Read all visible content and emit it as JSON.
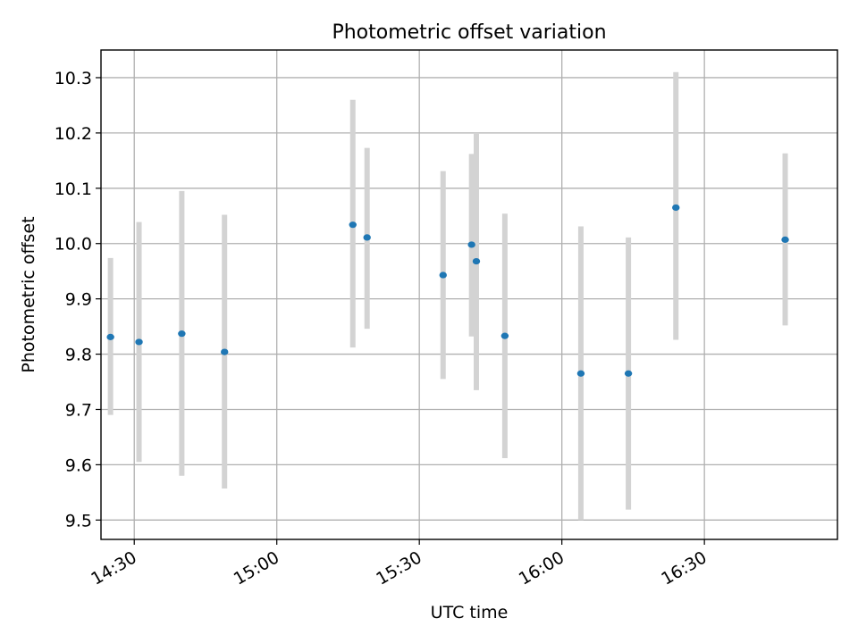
{
  "chart_data": {
    "type": "scatter",
    "title": "Photometric offset variation",
    "xlabel": "UTC time",
    "ylabel": "Photometric offset",
    "grid": true,
    "xlim": [
      "14:23",
      "16:58"
    ],
    "ylim": [
      9.465,
      10.35
    ],
    "x_ticks": [
      "14:30",
      "15:00",
      "15:30",
      "16:00",
      "16:30"
    ],
    "y_ticks": [
      9.5,
      9.6,
      9.7,
      9.8,
      9.9,
      10.0,
      10.1,
      10.2,
      10.3
    ],
    "y_tick_labels": [
      "9.5",
      "9.6",
      "9.7",
      "9.8",
      "9.9",
      "10.0",
      "10.1",
      "10.2",
      "10.3"
    ],
    "colors": {
      "marker": "#1f77b4",
      "errorbar": "#d3d3d3",
      "grid": "#b0b0b0"
    },
    "points": [
      {
        "time": "14:25",
        "value": 9.831,
        "err_low": 9.69,
        "err_high": 9.974
      },
      {
        "time": "14:31",
        "value": 9.822,
        "err_low": 9.605,
        "err_high": 10.039
      },
      {
        "time": "14:40",
        "value": 9.837,
        "err_low": 9.58,
        "err_high": 10.095
      },
      {
        "time": "14:49",
        "value": 9.804,
        "err_low": 9.557,
        "err_high": 10.052
      },
      {
        "time": "15:16",
        "value": 10.034,
        "err_low": 9.812,
        "err_high": 10.26
      },
      {
        "time": "15:19",
        "value": 10.011,
        "err_low": 9.846,
        "err_high": 10.173
      },
      {
        "time": "15:35",
        "value": 9.943,
        "err_low": 9.755,
        "err_high": 10.131
      },
      {
        "time": "15:41",
        "value": 9.998,
        "err_low": 9.832,
        "err_high": 10.162
      },
      {
        "time": "15:42",
        "value": 9.968,
        "err_low": 9.735,
        "err_high": 10.2
      },
      {
        "time": "15:48",
        "value": 9.833,
        "err_low": 9.612,
        "err_high": 10.054
      },
      {
        "time": "16:04",
        "value": 9.765,
        "err_low": 9.5,
        "err_high": 10.031
      },
      {
        "time": "16:14",
        "value": 9.765,
        "err_low": 9.519,
        "err_high": 10.011
      },
      {
        "time": "16:24",
        "value": 10.065,
        "err_low": 9.826,
        "err_high": 10.31
      },
      {
        "time": "16:47",
        "value": 10.007,
        "err_low": 9.852,
        "err_high": 10.163
      }
    ]
  }
}
